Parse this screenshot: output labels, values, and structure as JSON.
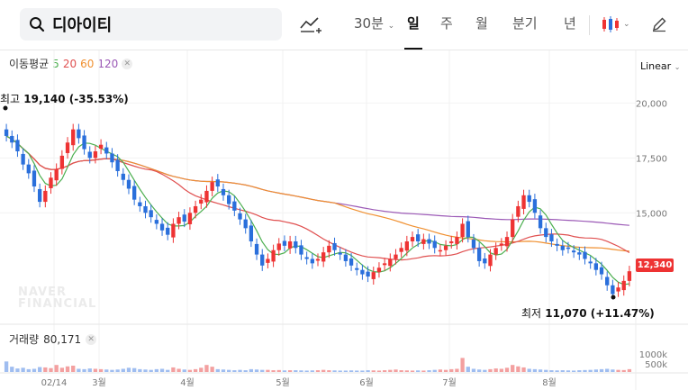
{
  "search": {
    "value": "디아이티"
  },
  "toolbar": {
    "interval_label": "30분",
    "tabs": [
      {
        "label": "일",
        "active": true
      },
      {
        "label": "주",
        "active": false
      },
      {
        "label": "월",
        "active": false
      },
      {
        "label": "분기",
        "active": false
      },
      {
        "label": "년",
        "active": false
      }
    ]
  },
  "legend": {
    "ma_label": "이동평균",
    "ma_periods": [
      "5",
      "20",
      "60",
      "120"
    ],
    "volume_label": "거래량",
    "volume_value": "80,171"
  },
  "scale": {
    "label": "Linear"
  },
  "watermark": {
    "line1": "NAVER",
    "line2": "FINANCIAL"
  },
  "colors": {
    "up": "#ee3333",
    "down": "#2a6fdb",
    "ma5": "#4caf50",
    "ma20": "#e05050",
    "ma60": "#f09030",
    "ma120": "#9b59b6"
  },
  "chart_data": {
    "type": "candlestick",
    "title": "디아이티",
    "yaxis": {
      "ticks": [
        "20,000",
        "17,500",
        "15,000"
      ],
      "tick_values": [
        20000,
        17500,
        15000
      ],
      "range": [
        10500,
        21000
      ]
    },
    "xaxis": {
      "ticks": [
        "02/14",
        "3월",
        "4월",
        "5월",
        "6월",
        "7월",
        "8월"
      ]
    },
    "volume_axis": {
      "ticks": [
        "1000k",
        "500k"
      ]
    },
    "current_price": "12,340",
    "high": {
      "label": "최고",
      "value": "19,140",
      "change": "(-35.53%)"
    },
    "low": {
      "label": "최저",
      "value": "11,070",
      "change": "(+11.47%)"
    },
    "closes": [
      18500,
      18200,
      17800,
      17200,
      16800,
      16200,
      15500,
      16000,
      16600,
      17000,
      17600,
      18200,
      18800,
      18400,
      17900,
      17500,
      17800,
      18100,
      17700,
      17300,
      16900,
      16500,
      16100,
      15600,
      15300,
      15000,
      14800,
      14500,
      14200,
      14000,
      14500,
      14800,
      14600,
      15000,
      15300,
      15600,
      16000,
      16400,
      16200,
      15800,
      15400,
      15100,
      14700,
      14300,
      13700,
      13100,
      12600,
      12900,
      13300,
      13600,
      13500,
      13700,
      13400,
      13100,
      12900,
      12700,
      12900,
      13200,
      13500,
      13300,
      13100,
      12800,
      12600,
      12400,
      12200,
      12100,
      12300,
      12500,
      12700,
      12900,
      13100,
      13400,
      13700,
      13900,
      13700,
      13800,
      13600,
      13400,
      13300,
      13500,
      13700,
      13900,
      14500,
      13900,
      13400,
      12800,
      12700,
      13100,
      13400,
      13600,
      13900,
      14700,
      15300,
      15800,
      15500,
      15000,
      14300,
      13900,
      13700,
      13500,
      13300,
      13400,
      13200,
      13100,
      12900,
      12700,
      12400,
      12200,
      11700,
      11300,
      11600,
      11900,
      12340
    ],
    "volumes": [
      300,
      150,
      100,
      120,
      80,
      90,
      140,
      130,
      110,
      200,
      120,
      160,
      180,
      90,
      80,
      100,
      90,
      80,
      70,
      60,
      70,
      90,
      120,
      110,
      80,
      70,
      60,
      80,
      90,
      60,
      130,
      90,
      70,
      60,
      80,
      120,
      200,
      150,
      80,
      70,
      60,
      50,
      60,
      50,
      80,
      70,
      60,
      60,
      50,
      55,
      45,
      50,
      50,
      45,
      40,
      45,
      50,
      60,
      50,
      45,
      40,
      40,
      45,
      40,
      40,
      50,
      45,
      40,
      50,
      60,
      70,
      50,
      45,
      40,
      45,
      40,
      50,
      60,
      70,
      60,
      80,
      90,
      400,
      150,
      90,
      70,
      60,
      80,
      100,
      90,
      120,
      200,
      160,
      130,
      90,
      80,
      70,
      60,
      50,
      45,
      50,
      45,
      40,
      50,
      55,
      60,
      70,
      80,
      90,
      70,
      60,
      55,
      80
    ]
  }
}
